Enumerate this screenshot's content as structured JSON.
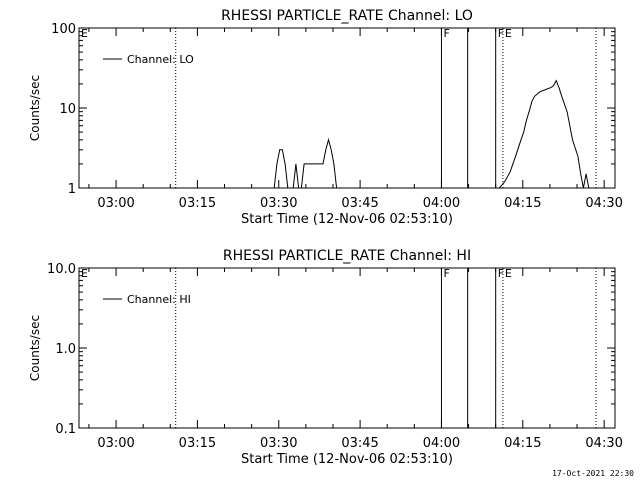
{
  "footer": {
    "timestamp": "17-Oct-2021 22:30"
  },
  "chart_data": [
    {
      "type": "line",
      "title": "RHESSI PARTICLE_RATE Channel: LO",
      "xlabel": "Start Time (12-Nov-06 02:53:10)",
      "ylabel": "Counts/sec",
      "y_scale": "log",
      "xlim": [
        "02:53:10",
        "04:32:00"
      ],
      "ylim": [
        1,
        100
      ],
      "x_ticks": [
        "03:00",
        "03:15",
        "03:30",
        "03:45",
        "04:00",
        "04:15",
        "04:30"
      ],
      "y_ticks": [
        "1",
        "10",
        "100"
      ],
      "legend": {
        "position": "top-left",
        "entries": [
          "Channel: LO"
        ]
      },
      "series": [
        {
          "name": "Channel: LO",
          "x": [
            "03:29:10",
            "03:29:40",
            "03:30:10",
            "03:30:40",
            "03:31:10",
            "03:31:40",
            "03:32:10",
            "03:32:40",
            "03:33:10",
            "03:33:40",
            "03:34:10",
            "03:34:40",
            "03:35:10",
            "03:36:10",
            "03:37:10",
            "03:38:10",
            "03:38:40",
            "03:39:10",
            "03:39:40",
            "03:40:10",
            "03:40:40",
            "04:10:40",
            "04:11:40",
            "04:12:40",
            "04:13:40",
            "04:14:40",
            "04:15:10",
            "04:15:40",
            "04:16:10",
            "04:16:40",
            "04:17:10",
            "04:18:10",
            "04:19:10",
            "04:20:10",
            "04:20:40",
            "04:21:10",
            "04:21:40",
            "04:22:10",
            "04:23:10",
            "04:23:40",
            "04:24:10",
            "04:25:10",
            "04:25:40",
            "04:26:10",
            "04:26:40",
            "04:27:10"
          ],
          "y": [
            1,
            2,
            3,
            3,
            2,
            1,
            1,
            1,
            2,
            1,
            1,
            2,
            2,
            2,
            2,
            2,
            3,
            4,
            3,
            2,
            1,
            1,
            1.2,
            1.6,
            2.5,
            4,
            5,
            7,
            9,
            12,
            14,
            16,
            17,
            18,
            19,
            22,
            18,
            14,
            9,
            6,
            4,
            2.5,
            1.5,
            1,
            1.5,
            1
          ]
        }
      ],
      "annotations": [
        {
          "type": "dotted-line",
          "x": "03:11:00",
          "label": ""
        },
        {
          "type": "solid-line",
          "x": "04:00:00",
          "label": "F"
        },
        {
          "type": "solid-line",
          "x": "04:04:50",
          "label": ""
        },
        {
          "type": "solid-line",
          "x": "04:10:00",
          "label": "F"
        },
        {
          "type": "dotted-line",
          "x": "04:11:20",
          "label": "E"
        },
        {
          "type": "dotted-line",
          "x": "04:28:30",
          "label": ""
        },
        {
          "type": "label",
          "x": "02:53:10",
          "label": "E"
        }
      ]
    },
    {
      "type": "line",
      "title": "RHESSI PARTICLE_RATE Channel: HI",
      "xlabel": "Start Time (12-Nov-06 02:53:10)",
      "ylabel": "Counts/sec",
      "y_scale": "log",
      "xlim": [
        "02:53:10",
        "04:32:00"
      ],
      "ylim": [
        0.1,
        10
      ],
      "x_ticks": [
        "03:00",
        "03:15",
        "03:30",
        "03:45",
        "04:00",
        "04:15",
        "04:30"
      ],
      "y_ticks": [
        "0.1",
        "1.0",
        "10.0"
      ],
      "legend": {
        "position": "top-left",
        "entries": [
          "Channel: HI"
        ]
      },
      "series": [
        {
          "name": "Channel: HI",
          "x": [],
          "y": []
        }
      ],
      "annotations": [
        {
          "type": "dotted-line",
          "x": "03:11:00",
          "label": ""
        },
        {
          "type": "solid-line",
          "x": "04:00:00",
          "label": "F"
        },
        {
          "type": "solid-line",
          "x": "04:04:50",
          "label": ""
        },
        {
          "type": "solid-line",
          "x": "04:10:00",
          "label": "F"
        },
        {
          "type": "dotted-line",
          "x": "04:11:20",
          "label": "E"
        },
        {
          "type": "dotted-line",
          "x": "04:28:30",
          "label": ""
        },
        {
          "type": "label",
          "x": "02:53:10",
          "label": "E"
        }
      ]
    }
  ]
}
